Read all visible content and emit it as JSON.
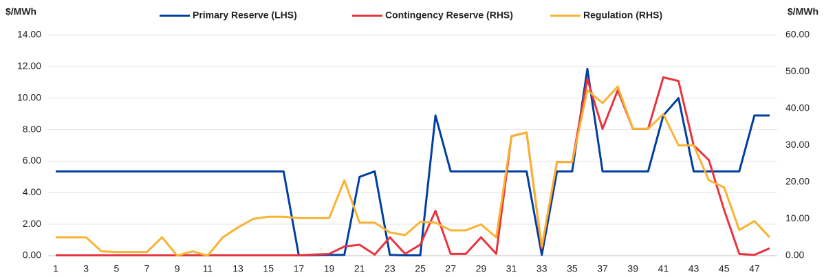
{
  "chart_data": {
    "type": "line",
    "y_label": "$/MWh",
    "y2_label": "$/MWh",
    "categories": [
      1,
      null,
      3,
      null,
      5,
      null,
      7,
      null,
      9,
      null,
      11,
      null,
      13,
      null,
      15,
      null,
      17,
      null,
      19,
      null,
      21,
      null,
      23,
      null,
      25,
      null,
      27,
      null,
      29,
      null,
      31,
      null,
      33,
      null,
      35,
      null,
      37,
      null,
      39,
      null,
      41,
      null,
      43,
      null,
      45,
      null,
      47,
      null
    ],
    "ylim": [
      0,
      14
    ],
    "yticks": [
      {
        "value": 0,
        "label": "0.00"
      },
      {
        "value": 2,
        "label": "2.00"
      },
      {
        "value": 4,
        "label": "4.00"
      },
      {
        "value": 6,
        "label": "6.00"
      },
      {
        "value": 8,
        "label": "8.00"
      },
      {
        "value": 10,
        "label": "10.00"
      },
      {
        "value": 12,
        "label": "12.00"
      },
      {
        "value": 14,
        "label": "14.00"
      }
    ],
    "y2lim": [
      0,
      60
    ],
    "y2ticks": [
      {
        "value": 0,
        "label": "0.00"
      },
      {
        "value": 10,
        "label": "10.00"
      },
      {
        "value": 20,
        "label": "20.00"
      },
      {
        "value": 30,
        "label": "30.00"
      },
      {
        "value": 40,
        "label": "40.00"
      },
      {
        "value": 50,
        "label": "50.00"
      },
      {
        "value": 60,
        "label": "60.00"
      }
    ],
    "grid": true,
    "legend": "top",
    "series": [
      {
        "name": "Primary Reserve (LHS)",
        "color": "#003f9e",
        "values": [
          5.35,
          5.35,
          5.35,
          5.35,
          5.35,
          5.35,
          5.35,
          5.35,
          5.35,
          5.35,
          5.35,
          5.35,
          5.35,
          5.35,
          5.35,
          5.35,
          0.02,
          0.03,
          0.05,
          0.05,
          5.0,
          5.35,
          0.05,
          0.02,
          0.02,
          8.9,
          5.35,
          5.35,
          5.35,
          5.35,
          5.35,
          5.35,
          0.05,
          5.35,
          5.35,
          11.85,
          5.35,
          5.35,
          5.35,
          5.35,
          8.9,
          10.0,
          5.35,
          5.35,
          5.35,
          5.35,
          8.9,
          8.9
        ]
      },
      {
        "name": "Contingency Reserve (RHS)",
        "color": "#e8343f",
        "axis": "y2",
        "values": [
          0.1,
          0.1,
          0.1,
          0.1,
          0.1,
          0.1,
          0.1,
          0.1,
          0.1,
          0.1,
          0.1,
          0.1,
          0.1,
          0.1,
          0.1,
          0.1,
          0.1,
          0.3,
          0.5,
          2.5,
          3.0,
          0.3,
          5.0,
          0.5,
          3.0,
          12.2,
          0.5,
          0.5,
          5.0,
          0.5,
          32.5,
          33.5,
          2.0,
          25.5,
          25.5,
          48,
          34.5,
          45,
          34.5,
          34.5,
          48.5,
          47.5,
          30,
          26,
          12.5,
          0.5,
          0.2,
          2.0
        ]
      },
      {
        "name": "Regulation (RHS)",
        "color": "#f9b233",
        "axis": "y2",
        "values": [
          5.0,
          5.0,
          5.0,
          1.2,
          1.0,
          1.0,
          1.0,
          5.0,
          0.0,
          1.2,
          0.0,
          5.0,
          7.7,
          10.0,
          10.6,
          10.6,
          10.2,
          10.2,
          10.2,
          20.5,
          9.0,
          9.0,
          6.3,
          5.6,
          9.2,
          9.0,
          6.9,
          6.9,
          8.5,
          5.0,
          32.5,
          33.5,
          2.5,
          25.5,
          25.5,
          45,
          41.5,
          46,
          34.5,
          34.5,
          38.5,
          30,
          30,
          20.5,
          18.6,
          7.0,
          9.4,
          5.0
        ]
      }
    ]
  }
}
